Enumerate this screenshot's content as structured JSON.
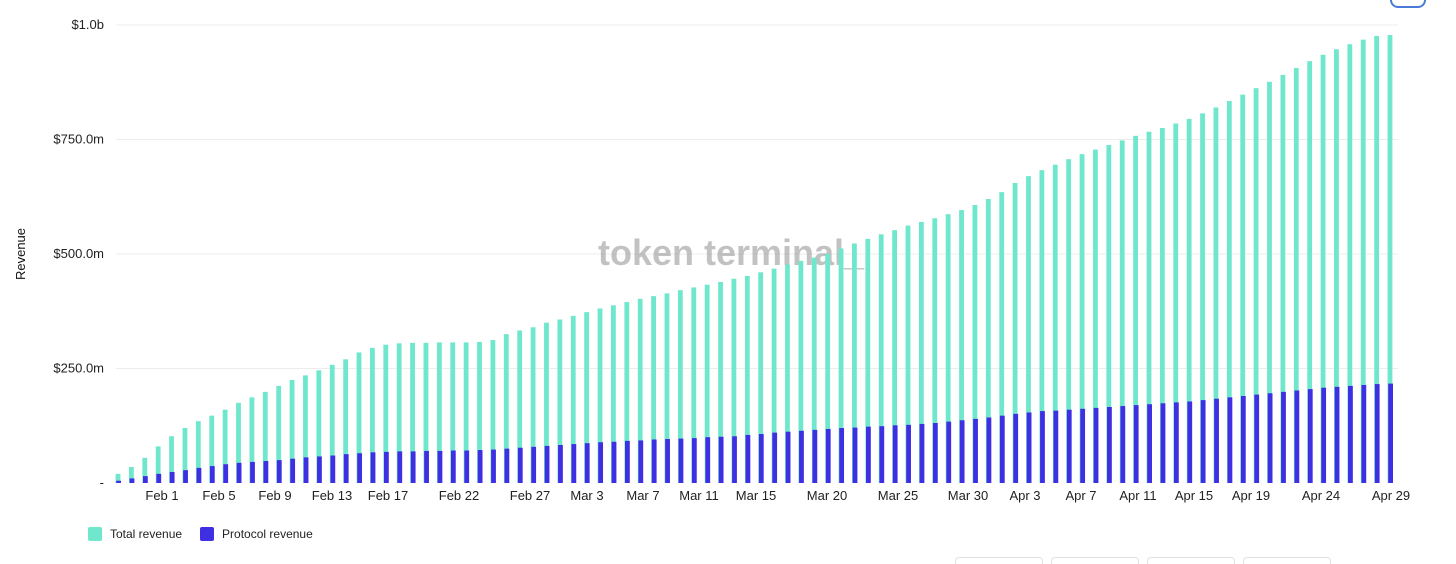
{
  "colors": {
    "total": "#6ee7cc",
    "protocol": "#3f2fe3",
    "grid": "#ececec"
  },
  "watermark": "token terminal_",
  "chart_data": {
    "type": "bar",
    "ylabel": "Revenue",
    "ylim": [
      0,
      1000000000
    ],
    "yticks": [
      {
        "value": 0,
        "label": "-"
      },
      {
        "value": 250000000,
        "label": "$250.0m"
      },
      {
        "value": 500000000,
        "label": "$500.0m"
      },
      {
        "value": 750000000,
        "label": "$750.0m"
      },
      {
        "value": 1000000000,
        "label": "$1.0b"
      }
    ],
    "grid": true,
    "legend_position": "bottom-left",
    "x_tick_labels": [
      "Feb 1",
      "Feb 5",
      "Feb 9",
      "Feb 13",
      "Feb 17",
      "Feb 22",
      "Feb 27",
      "Mar 3",
      "Mar 7",
      "Mar 11",
      "Mar 15",
      "Mar 20",
      "Mar 25",
      "Mar 30",
      "Apr 3",
      "Apr 7",
      "Apr 11",
      "Apr 15",
      "Apr 19",
      "Apr 24",
      "Apr 29"
    ],
    "series": [
      {
        "name": "Total revenue",
        "values_millions": [
          20,
          35,
          55,
          80,
          102,
          120,
          135,
          147,
          160,
          175,
          187,
          199,
          212,
          225,
          235,
          246,
          258,
          270,
          285,
          295,
          302,
          305,
          306,
          306,
          307,
          307,
          307,
          308,
          312,
          325,
          333,
          340,
          350,
          357,
          365,
          373,
          381,
          388,
          395,
          402,
          408,
          414,
          421,
          427,
          433,
          439,
          446,
          452,
          460,
          468,
          477,
          485,
          492,
          500,
          512,
          523,
          533,
          543,
          552,
          562,
          570,
          578,
          587,
          596,
          607,
          620,
          635,
          655,
          670,
          683,
          695,
          707,
          718,
          728,
          738,
          748,
          758,
          767,
          775,
          785,
          795,
          807,
          820,
          834,
          848,
          862,
          876,
          891,
          906,
          921,
          935,
          947,
          958,
          968,
          976,
          978
        ]
      },
      {
        "name": "Protocol revenue",
        "values_millions": [
          5,
          10,
          15,
          20,
          24,
          28,
          33,
          37,
          41,
          44,
          46,
          48,
          50,
          53,
          56,
          58,
          60,
          63,
          65,
          67,
          68,
          69,
          69,
          70,
          70,
          71,
          71,
          72,
          73,
          75,
          77,
          79,
          81,
          83,
          85,
          87,
          89,
          90,
          92,
          93,
          95,
          96,
          97,
          98,
          100,
          101,
          102,
          105,
          107,
          110,
          112,
          114,
          116,
          118,
          120,
          121,
          123,
          124,
          126,
          127,
          129,
          131,
          134,
          137,
          140,
          143,
          147,
          151,
          154,
          157,
          158,
          160,
          162,
          164,
          166,
          168,
          170,
          172,
          174,
          176,
          178,
          181,
          184,
          187,
          190,
          193,
          196,
          199,
          202,
          205,
          208,
          210,
          212,
          214,
          216,
          217
        ]
      }
    ]
  }
}
